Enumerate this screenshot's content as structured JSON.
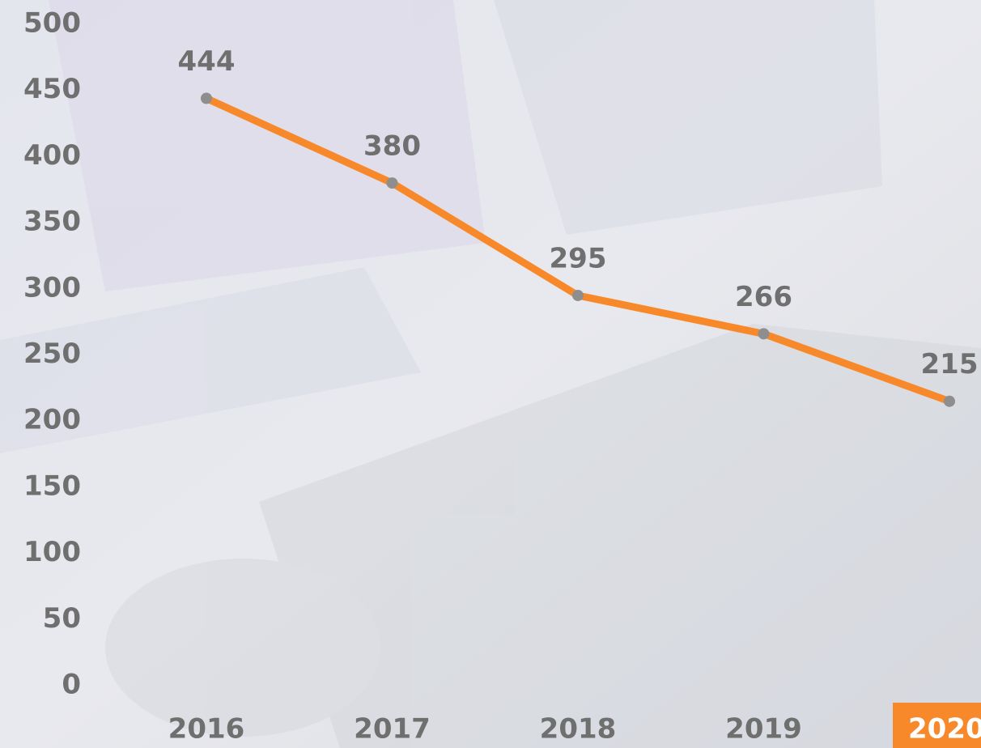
{
  "chart_data": {
    "type": "line",
    "categories": [
      "2016",
      "2017",
      "2018",
      "2019",
      "2020"
    ],
    "values": [
      444,
      380,
      295,
      266,
      215
    ],
    "color": "#f7892b",
    "point_color": "#8e8e8e",
    "ylim": [
      0,
      500
    ],
    "yticks": [
      0,
      50,
      100,
      150,
      200,
      250,
      300,
      350,
      400,
      450,
      500
    ],
    "grid": false
  }
}
